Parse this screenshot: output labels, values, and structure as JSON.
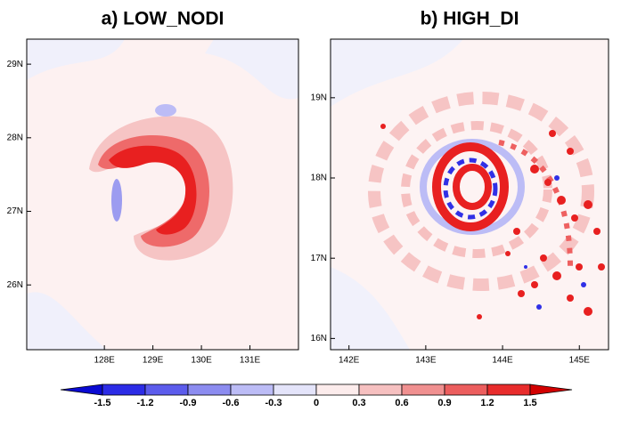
{
  "chart_data": [
    {
      "type": "map",
      "title": "a) LOW_NODI",
      "xlim": [
        126.4,
        132.0
      ],
      "ylim": [
        25.12,
        29.34
      ],
      "xticks": [
        {
          "value": 128,
          "label": "128E"
        },
        {
          "value": 129,
          "label": "129E"
        },
        {
          "value": 130,
          "label": "130E"
        },
        {
          "value": 131,
          "label": "131E"
        }
      ],
      "yticks": [
        {
          "value": 26,
          "label": "26N"
        },
        {
          "value": 27,
          "label": "27N"
        },
        {
          "value": 28,
          "label": "28N"
        },
        {
          "value": 29,
          "label": "29N"
        }
      ]
    },
    {
      "type": "map",
      "title": "b) HIGH_DI",
      "xlim": [
        141.76,
        145.38
      ],
      "ylim": [
        15.86,
        19.73
      ],
      "xticks": [
        {
          "value": 142,
          "label": "142E"
        },
        {
          "value": 143,
          "label": "143E"
        },
        {
          "value": 144,
          "label": "144E"
        },
        {
          "value": 145,
          "label": "145E"
        }
      ],
      "yticks": [
        {
          "value": 16,
          "label": "16N"
        },
        {
          "value": 17,
          "label": "17N"
        },
        {
          "value": 18,
          "label": "18N"
        },
        {
          "value": 19,
          "label": "19N"
        }
      ]
    }
  ],
  "colorbar": {
    "ticks": [
      -1.5,
      -1.2,
      -0.9,
      -0.6,
      -0.3,
      0,
      0.3,
      0.6,
      0.9,
      1.2,
      1.5
    ],
    "colors": [
      "#0a0ad2",
      "#2c2ce6",
      "#5c5cec",
      "#8c8cf0",
      "#bcbcf6",
      "#e4e4fa",
      "#fcecec",
      "#f6c0c0",
      "#f09090",
      "#ec5e5e",
      "#e82c2c",
      "#d20000"
    ]
  }
}
